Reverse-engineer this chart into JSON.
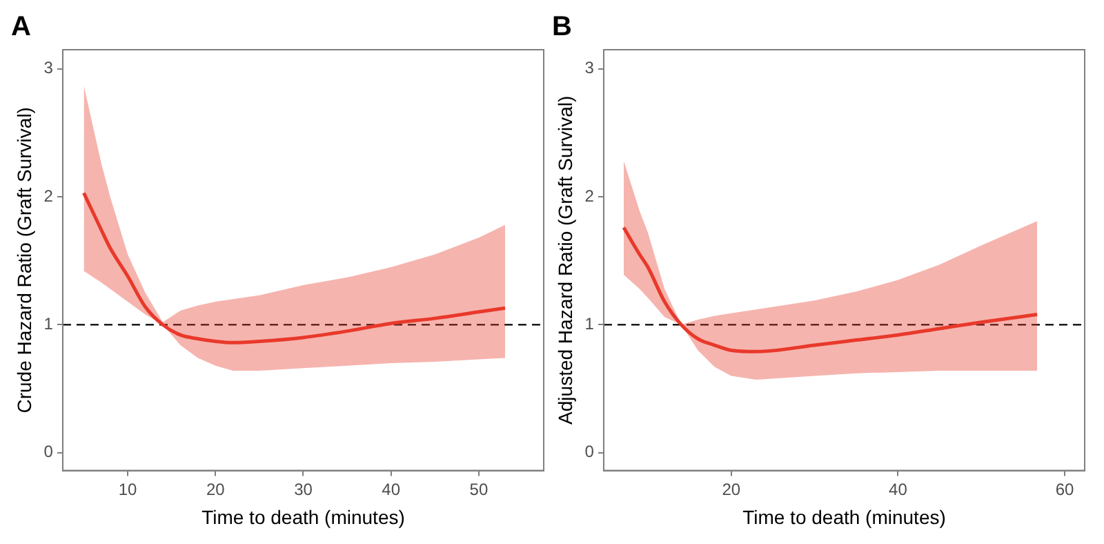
{
  "chart_data": [
    {
      "type": "line",
      "title": "A",
      "xlabel": "Time to death (minutes)",
      "ylabel": "Crude Hazard Ratio (Graft Survival)",
      "xlim": [
        2.6,
        57.4
      ],
      "ylim": [
        -0.14,
        3.15
      ],
      "xticks": [
        10,
        20,
        30,
        40,
        50
      ],
      "yticks": [
        0,
        1,
        2,
        3
      ],
      "grid": false,
      "legend": false,
      "line_style": "solid",
      "marker": "none",
      "ref_lines": [
        {
          "axis": "y",
          "value": 1,
          "line_style": "dashed",
          "color": "#000000"
        }
      ],
      "series": [
        {
          "color": "#e8392b",
          "x": [
            5,
            7,
            8,
            10,
            12,
            14,
            16,
            18,
            20,
            22,
            25,
            30,
            35,
            40,
            45,
            50,
            53
          ],
          "values": [
            2.03,
            1.74,
            1.6,
            1.38,
            1.14,
            1.0,
            0.92,
            0.89,
            0.87,
            0.86,
            0.87,
            0.9,
            0.95,
            1.01,
            1.05,
            1.1,
            1.13
          ],
          "upper": [
            2.87,
            2.26,
            2.0,
            1.55,
            1.25,
            1.02,
            1.11,
            1.15,
            1.18,
            1.2,
            1.23,
            1.31,
            1.37,
            1.45,
            1.55,
            1.68,
            1.78
          ],
          "lower": [
            1.42,
            1.33,
            1.28,
            1.18,
            1.08,
            1.0,
            0.84,
            0.74,
            0.68,
            0.64,
            0.64,
            0.66,
            0.68,
            0.7,
            0.71,
            0.73,
            0.74
          ]
        }
      ]
    },
    {
      "type": "line",
      "title": "B",
      "xlabel": "Time to death (minutes)",
      "ylabel": "Adjusted Hazard Ratio (Graft Survival)",
      "xlim": [
        4.7,
        62.4
      ],
      "ylim": [
        -0.14,
        3.15
      ],
      "xticks": [
        20,
        40,
        60
      ],
      "yticks": [
        0,
        1,
        2,
        3
      ],
      "grid": false,
      "legend": false,
      "line_style": "solid",
      "marker": "none",
      "ref_lines": [
        {
          "axis": "y",
          "value": 1,
          "line_style": "dashed",
          "color": "#000000"
        }
      ],
      "series": [
        {
          "color": "#e8392b",
          "x": [
            7.1,
            9,
            10,
            12,
            14,
            16,
            18,
            20,
            23,
            30,
            35,
            40,
            45,
            50,
            56.7
          ],
          "values": [
            1.76,
            1.55,
            1.45,
            1.18,
            1.0,
            0.89,
            0.84,
            0.8,
            0.79,
            0.84,
            0.88,
            0.92,
            0.97,
            1.02,
            1.08
          ],
          "upper": [
            2.28,
            1.89,
            1.72,
            1.28,
            1.0,
            1.04,
            1.07,
            1.09,
            1.12,
            1.19,
            1.26,
            1.35,
            1.47,
            1.62,
            1.81
          ],
          "lower": [
            1.39,
            1.28,
            1.21,
            1.06,
            1.0,
            0.8,
            0.67,
            0.6,
            0.57,
            0.6,
            0.62,
            0.63,
            0.64,
            0.64,
            0.64
          ]
        }
      ]
    }
  ]
}
